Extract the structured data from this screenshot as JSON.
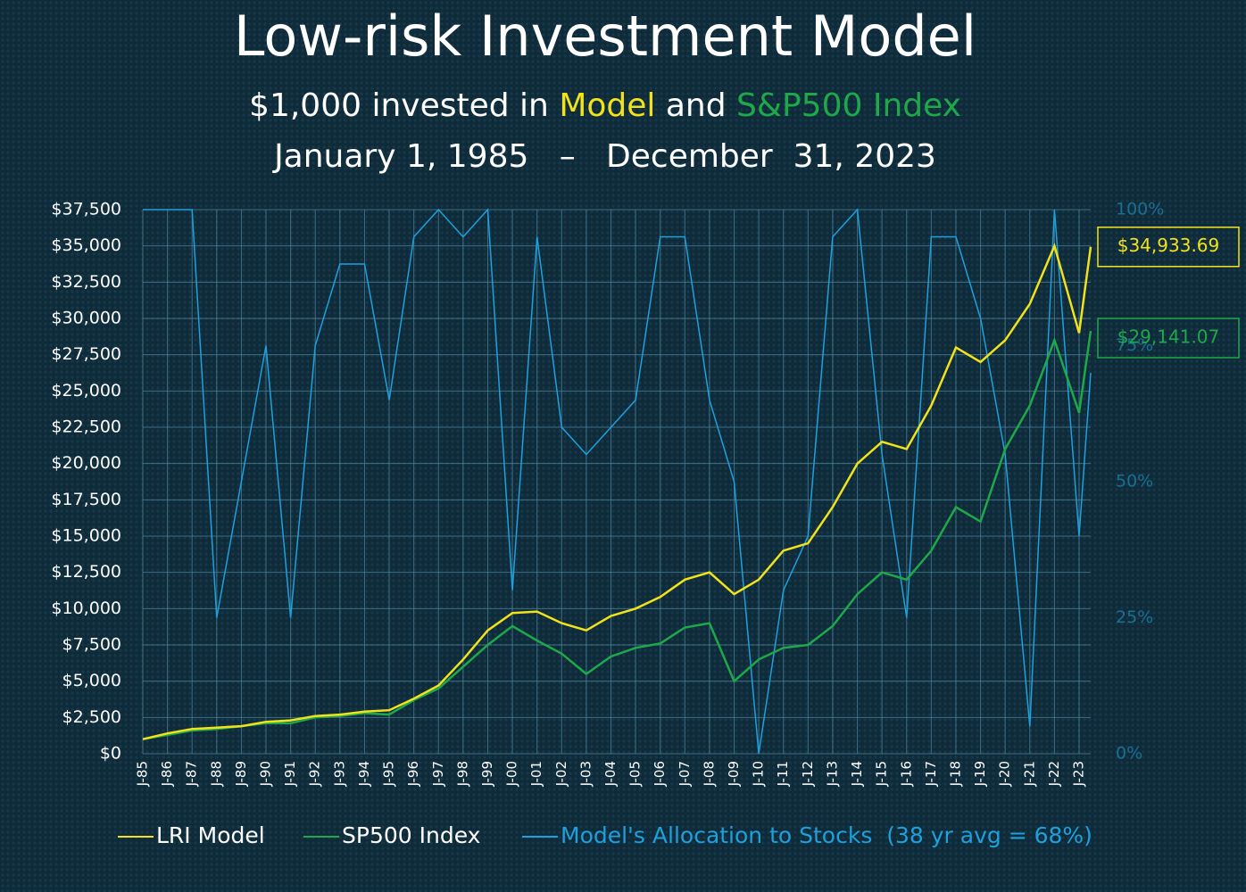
{
  "chart_data": {
    "type": "line",
    "title": "Low-risk Investment Model",
    "subtitle_parts": [
      "$1,000 invested in ",
      "Model",
      " and ",
      "S&P500 Index"
    ],
    "date_range": "January 1, 1985   –   December  31, 2023",
    "categories": [
      "J-85",
      "J-86",
      "J-87",
      "J-88",
      "J-89",
      "J-90",
      "J-91",
      "J-92",
      "J-93",
      "J-94",
      "J-95",
      "J-96",
      "J-97",
      "J-98",
      "J-99",
      "J-00",
      "J-01",
      "J-02",
      "J-03",
      "J-04",
      "J-05",
      "J-06",
      "J-07",
      "J-08",
      "J-09",
      "J-10",
      "J-11",
      "J-12",
      "J-13",
      "J-14",
      "J-15",
      "J-16",
      "J-17",
      "J-18",
      "J-19",
      "J-20",
      "J-21",
      "J-22",
      "J-23",
      null
    ],
    "series": [
      {
        "name": "LRI Model",
        "color": "#f2e21b",
        "values": [
          1000,
          1400,
          1700,
          1800,
          1900,
          2200,
          2300,
          2600,
          2700,
          2900,
          3000,
          3800,
          4700,
          6500,
          8500,
          9700,
          9800,
          9000,
          8500,
          9500,
          10000,
          10800,
          12000,
          12500,
          11000,
          12000,
          14000,
          14500,
          17000,
          20000,
          21500,
          21000,
          24000,
          28000,
          27000,
          28500,
          31000,
          35000,
          29000,
          34933.69
        ],
        "value_labels": [
          null,
          null,
          null,
          null,
          null,
          null,
          null,
          null,
          null,
          null,
          null,
          null,
          null,
          null,
          null,
          null,
          null,
          null,
          null,
          null,
          null,
          null,
          null,
          null,
          null,
          null,
          null,
          null,
          null,
          null,
          null,
          null,
          null,
          null,
          null,
          null,
          null,
          null,
          null,
          "$34,933.69"
        ]
      },
      {
        "name": "SP500 Index",
        "color": "#1fa84a",
        "values": [
          1000,
          1300,
          1600,
          1700,
          1900,
          2100,
          2100,
          2500,
          2600,
          2800,
          2700,
          3700,
          4500,
          6000,
          7500,
          8800,
          7800,
          6900,
          5500,
          6700,
          7300,
          7600,
          8700,
          9000,
          5000,
          6500,
          7300,
          7500,
          8800,
          11000,
          12500,
          12000,
          14000,
          17000,
          16000,
          21000,
          24000,
          28500,
          23500,
          29141.07
        ],
        "value_labels": [
          null,
          null,
          null,
          null,
          null,
          null,
          null,
          null,
          null,
          null,
          null,
          null,
          null,
          null,
          null,
          null,
          null,
          null,
          null,
          null,
          null,
          null,
          null,
          null,
          null,
          null,
          null,
          null,
          null,
          null,
          null,
          null,
          null,
          null,
          null,
          null,
          null,
          null,
          null,
          "$29,141.07"
        ]
      },
      {
        "name": "Model's Allocation to Stocks  (38 yr avg = 68%)",
        "color": "#1ea0dc",
        "axis": "y2",
        "values": [
          100,
          100,
          100,
          25,
          50,
          75,
          25,
          75,
          90,
          90,
          65,
          95,
          100,
          95,
          100,
          30,
          95,
          60,
          55,
          60,
          65,
          95,
          95,
          65,
          50,
          0,
          30,
          40,
          95,
          100,
          55,
          25,
          95,
          95,
          80,
          55,
          5,
          100,
          40,
          70
        ]
      }
    ],
    "ylim": [
      0,
      37500
    ],
    "yticks": [
      {
        "value": 0,
        "label": "$0"
      },
      {
        "value": 2500,
        "label": "$2,500"
      },
      {
        "value": 5000,
        "label": "$5,000"
      },
      {
        "value": 7500,
        "label": "$7,500"
      },
      {
        "value": 10000,
        "label": "$10,000"
      },
      {
        "value": 12500,
        "label": "$12,500"
      },
      {
        "value": 15000,
        "label": "$15,000"
      },
      {
        "value": 17500,
        "label": "$17,500"
      },
      {
        "value": 20000,
        "label": "$20,000"
      },
      {
        "value": 22500,
        "label": "$22,500"
      },
      {
        "value": 25000,
        "label": "$25,000"
      },
      {
        "value": 27500,
        "label": "$27,500"
      },
      {
        "value": 30000,
        "label": "$30,000"
      },
      {
        "value": 32500,
        "label": "$32,500"
      },
      {
        "value": 35000,
        "label": "$35,000"
      },
      {
        "value": 37500,
        "label": "$37,500"
      }
    ],
    "y2lim": [
      0,
      100
    ],
    "y2ticks": [
      {
        "value": 0,
        "label": "0%"
      },
      {
        "value": 25,
        "label": "25%"
      },
      {
        "value": 50,
        "label": "50%"
      },
      {
        "value": 75,
        "label": "75%"
      },
      {
        "value": 100,
        "label": "100%"
      }
    ],
    "grid": true
  }
}
